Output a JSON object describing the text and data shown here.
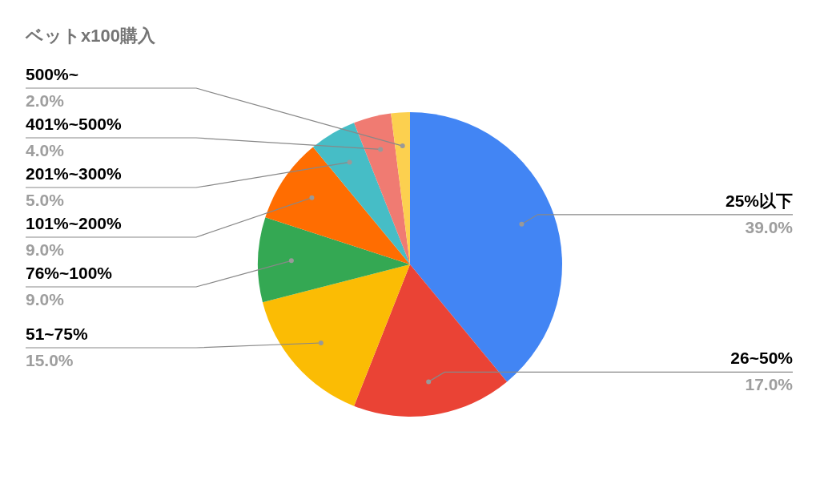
{
  "chart_data": {
    "type": "pie",
    "title": "ベットx100購入",
    "categories": [
      "25%以下",
      "26~50%",
      "51~75%",
      "76%~100%",
      "101%~200%",
      "201%~300%",
      "401%~500%",
      "500%~"
    ],
    "values": [
      39,
      17,
      15,
      9,
      9,
      5,
      4,
      2
    ],
    "value_labels": [
      "39.0%",
      "17.0%",
      "15.0%",
      "9.0%",
      "9.0%",
      "5.0%",
      "4.0%",
      "2.0%"
    ],
    "colors": [
      "#4285f4",
      "#ea4335",
      "#fbbc04",
      "#34a853",
      "#ff6d01",
      "#46bdc6",
      "#f07b72",
      "#fcd04f"
    ]
  }
}
